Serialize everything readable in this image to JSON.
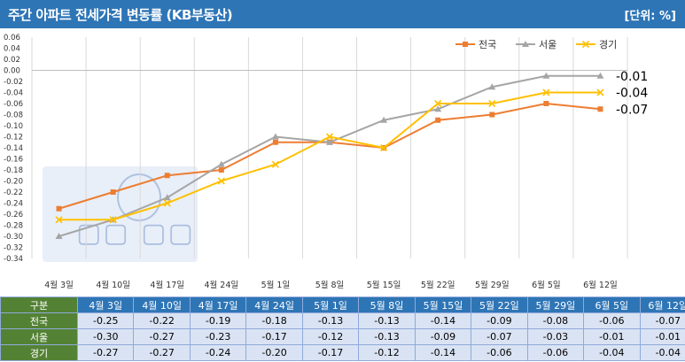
{
  "header": {
    "title": "주간 아파트 전세가격 변동률 (KB부동산)",
    "unit": "[단위: %]"
  },
  "table": {
    "corner_label": "구분"
  },
  "chart_data": {
    "type": "line",
    "title": "주간 아파트 전세가격 변동률 (KB부동산)",
    "unit": "[단위: %]",
    "categories": [
      "4월 3일",
      "4월 10일",
      "4월 17일",
      "4월 24일",
      "5월 1일",
      "5월 8일",
      "5월 15일",
      "5월 22일",
      "5월 29일",
      "6월 5일",
      "6월 12일"
    ],
    "ylim": [
      -0.34,
      0.06
    ],
    "ytick_step": 0.02,
    "grid": "vertical",
    "legend": "top-right",
    "series": [
      {
        "name": "전국",
        "color": "#ed7d31",
        "marker": "square",
        "values": [
          -0.25,
          -0.22,
          -0.19,
          -0.18,
          -0.13,
          -0.13,
          -0.14,
          -0.09,
          -0.08,
          -0.06,
          -0.07
        ]
      },
      {
        "name": "서울",
        "color": "#a5a5a5",
        "marker": "triangle",
        "values": [
          -0.3,
          -0.27,
          -0.23,
          -0.17,
          -0.12,
          -0.13,
          -0.09,
          -0.07,
          -0.03,
          -0.01,
          -0.01
        ]
      },
      {
        "name": "경기",
        "color": "#ffc000",
        "marker": "x",
        "values": [
          -0.27,
          -0.27,
          -0.24,
          -0.2,
          -0.17,
          -0.12,
          -0.14,
          -0.06,
          -0.06,
          -0.04,
          -0.04
        ]
      }
    ],
    "end_labels": [
      "-0.01",
      "-0.04",
      "-0.07"
    ],
    "table_values": [
      [
        "-0.25",
        "-0.22",
        "-0.19",
        "-0.18",
        "-0.13",
        "-0.13",
        "-0.14",
        "-0.09",
        "-0.08",
        "-0.06",
        "-0.07"
      ],
      [
        "-0.30",
        "-0.27",
        "-0.23",
        "-0.17",
        "-0.12",
        "-0.13",
        "-0.09",
        "-0.07",
        "-0.03",
        "-0.01",
        "-0.01"
      ],
      [
        "-0.27",
        "-0.27",
        "-0.24",
        "-0.20",
        "-0.17",
        "-0.12",
        "-0.14",
        "-0.06",
        "-0.06",
        "-0.04",
        "-0.04"
      ]
    ]
  }
}
